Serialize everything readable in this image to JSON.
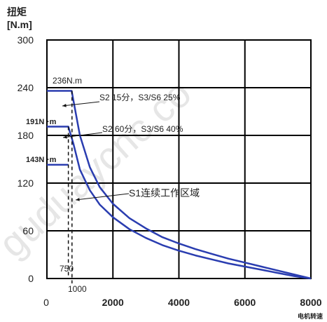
{
  "chart_data": {
    "type": "line",
    "ylabel_lines": [
      "扭矩",
      "[N.m]"
    ],
    "xlabel": "电机转速",
    "watermark": "guduaycnc.co",
    "ylim": [
      0,
      300
    ],
    "xlim": [
      0,
      8000
    ],
    "y_ticks": [
      0,
      60,
      120,
      180,
      240,
      300
    ],
    "x_ticks": [
      0,
      2000,
      4000,
      6000,
      8000
    ],
    "x_tick_labels": [
      "0",
      "2000",
      "4000",
      "6000",
      "8000"
    ],
    "y_tick_labels": [
      "0",
      "60",
      "120",
      "180",
      "240",
      "300"
    ],
    "grid": true,
    "line_color": "#2a3db0",
    "series": [
      {
        "x": [
          0,
          750,
          1000,
          1300,
          1600,
          2000,
          2500,
          3000,
          3500,
          4000,
          4500,
          5000,
          5500,
          6000,
          6500,
          7000,
          7500,
          8000
        ],
        "y": [
          236,
          236,
          180,
          140,
          115,
          94,
          76,
          63,
          52,
          44,
          37,
          31,
          25,
          20,
          15,
          10,
          5,
          0
        ]
      },
      {
        "x": [
          0,
          650,
          800,
          1000,
          1300,
          1600,
          2000,
          2500,
          3000,
          3500,
          4000,
          4500,
          5000,
          5500,
          6000,
          6500,
          7000,
          7500,
          8000
        ],
        "y": [
          191,
          191,
          170,
          137,
          111,
          93,
          77,
          62,
          51,
          42,
          35,
          29,
          24,
          19,
          15,
          11,
          7,
          3,
          0
        ]
      },
      {
        "x": [
          0,
          650
        ],
        "y": [
          143,
          143
        ]
      }
    ],
    "annotations": {
      "a236": "236N.m",
      "a191": "191N",
      "a143": "143N",
      "m191": "·m",
      "m143": "·m",
      "s2_15": "S2 15分，S3/S6 25%",
      "s2_60": "S2 60分，S3/S6 40%",
      "s1": "S1连续工作区域",
      "v750": "750",
      "v1000": "1000"
    }
  }
}
